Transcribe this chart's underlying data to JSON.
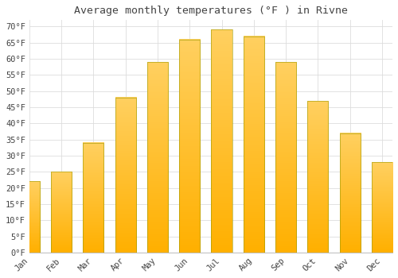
{
  "title": "Average monthly temperatures (°F ) in Rivne",
  "months": [
    "Jan",
    "Feb",
    "Mar",
    "Apr",
    "May",
    "Jun",
    "Jul",
    "Aug",
    "Sep",
    "Oct",
    "Nov",
    "Dec"
  ],
  "values": [
    22,
    25,
    34,
    48,
    59,
    66,
    69,
    67,
    59,
    47,
    37,
    28
  ],
  "bar_color_top": "#FFC020",
  "bar_color_bottom": "#FFB000",
  "bar_edge_color": "#888800",
  "background_color": "#FFFFFF",
  "grid_color": "#DDDDDD",
  "ylim": [
    0,
    72
  ],
  "yticks": [
    0,
    5,
    10,
    15,
    20,
    25,
    30,
    35,
    40,
    45,
    50,
    55,
    60,
    65,
    70
  ],
  "title_fontsize": 9.5,
  "tick_fontsize": 7.5,
  "font_color": "#444444"
}
